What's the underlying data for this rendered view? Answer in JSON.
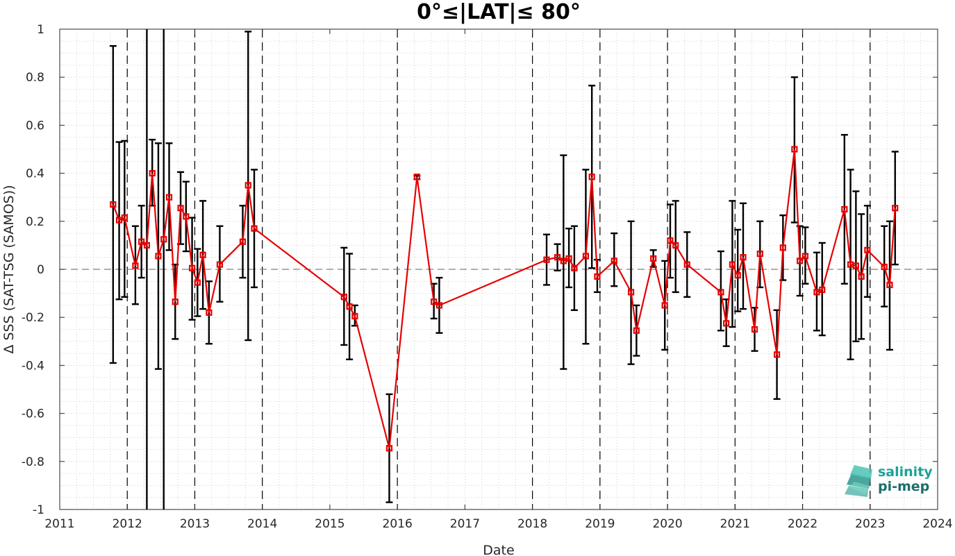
{
  "chart_data": {
    "type": "line",
    "title": "0°≤|LAT|≤ 80°",
    "xlabel": "Date",
    "ylabel": "Δ SSS (SAT-TSG (SAMOS))",
    "xlim": [
      2011,
      2024
    ],
    "ylim": [
      -1,
      1
    ],
    "x_ticks": [
      "2011",
      "2012",
      "2013",
      "2014",
      "2015",
      "2016",
      "2017",
      "2018",
      "2019",
      "2020",
      "2021",
      "2022",
      "2023",
      "2024"
    ],
    "y_ticks": [
      "-1",
      "-0.8",
      "-0.6",
      "-0.4",
      "-0.2",
      "0",
      "0.2",
      "0.4",
      "0.6",
      "0.8",
      "1"
    ],
    "grid": "minor dotted",
    "zero_line": "dashed",
    "year_lines": [
      2012,
      2013,
      2014,
      2016,
      2018,
      2019,
      2020,
      2021,
      2022,
      2023
    ],
    "line_color": "#e60000",
    "errorbar_color": "#000000",
    "series": [
      {
        "x": [
          2011.79,
          2011.88,
          2011.96,
          2012.12,
          2012.21,
          2012.29,
          2012.37,
          2012.46,
          2012.54,
          2012.62,
          2012.71,
          2012.79,
          2012.87,
          2012.96,
          2013.04,
          2013.12,
          2013.21,
          2013.37,
          2013.71,
          2013.79,
          2013.88,
          2015.21,
          2015.29,
          2015.37,
          2015.88,
          2016.29,
          2016.54,
          2016.62,
          2018.21,
          2018.37,
          2018.46,
          2018.54,
          2018.62,
          2018.79,
          2018.88,
          2018.96,
          2019.21,
          2019.46,
          2019.54,
          2019.79,
          2019.96,
          2020.04,
          2020.12,
          2020.29,
          2020.79,
          2020.87,
          2020.96,
          2021.04,
          2021.12,
          2021.29,
          2021.37,
          2021.62,
          2021.71,
          2021.88,
          2021.96,
          2022.04,
          2022.21,
          2022.29,
          2022.62,
          2022.71,
          2022.79,
          2022.87,
          2022.96,
          2023.21,
          2023.29,
          2023.37
        ],
        "y": [
          0.27,
          0.205,
          0.215,
          0.015,
          0.115,
          0.1,
          0.4,
          0.055,
          0.125,
          0.3,
          -0.135,
          0.255,
          0.22,
          0.005,
          -0.055,
          0.06,
          -0.18,
          0.02,
          0.115,
          0.35,
          0.17,
          -0.115,
          -0.155,
          -0.195,
          -0.745,
          0.385,
          -0.135,
          -0.15,
          0.04,
          0.05,
          0.035,
          0.045,
          0.005,
          0.055,
          0.385,
          -0.03,
          0.035,
          -0.095,
          -0.255,
          0.045,
          -0.15,
          0.12,
          0.1,
          0.02,
          -0.095,
          -0.225,
          0.02,
          -0.025,
          0.05,
          -0.25,
          0.065,
          -0.355,
          0.09,
          0.5,
          0.035,
          0.055,
          -0.095,
          -0.085,
          0.25,
          0.02,
          0.015,
          -0.03,
          0.08,
          0.01,
          -0.065,
          0.255
        ],
        "err_low": [
          -0.39,
          -0.125,
          -0.115,
          -0.145,
          -0.035,
          -1,
          0.265,
          -0.415,
          -1,
          0.08,
          -0.29,
          0.105,
          0.075,
          -0.21,
          -0.195,
          -0.165,
          -0.31,
          -0.135,
          -0.035,
          -0.295,
          -0.075,
          -0.315,
          -0.375,
          -0.235,
          -0.97,
          0.375,
          -0.205,
          -0.265,
          -0.065,
          -0.005,
          -0.415,
          -0.075,
          -0.17,
          -0.31,
          0.005,
          -0.095,
          -0.07,
          -0.395,
          -0.36,
          0.01,
          -0.335,
          -0.035,
          -0.095,
          -0.115,
          -0.255,
          -0.32,
          -0.24,
          -0.175,
          -0.165,
          -0.34,
          -0.075,
          -0.54,
          -0.045,
          0.195,
          -0.11,
          -0.06,
          -0.255,
          -0.275,
          -0.06,
          -0.375,
          -0.3,
          -0.29,
          -0.115,
          -0.155,
          -0.335,
          0.02
        ],
        "err_high": [
          0.93,
          0.53,
          0.535,
          0.18,
          0.265,
          1,
          0.54,
          0.525,
          1,
          0.525,
          0.02,
          0.405,
          0.365,
          0.215,
          0.085,
          0.285,
          -0.05,
          0.18,
          0.265,
          0.99,
          0.415,
          0.09,
          0.065,
          -0.15,
          -0.52,
          0.39,
          -0.06,
          -0.035,
          0.145,
          0.105,
          0.475,
          0.17,
          0.18,
          0.415,
          0.765,
          0.04,
          0.15,
          0.2,
          -0.15,
          0.08,
          0.035,
          0.27,
          0.285,
          0.155,
          0.075,
          -0.125,
          0.285,
          0.165,
          0.275,
          -0.16,
          0.2,
          -0.17,
          0.225,
          0.8,
          0.18,
          0.175,
          0.07,
          0.11,
          0.56,
          0.415,
          0.325,
          0.23,
          0.265,
          0.18,
          0.2,
          0.49
        ]
      }
    ]
  },
  "logo": {
    "line1": "salinity",
    "line2": "pi-mep",
    "color1": "#1aa397",
    "color2": "#1a6f6a"
  }
}
